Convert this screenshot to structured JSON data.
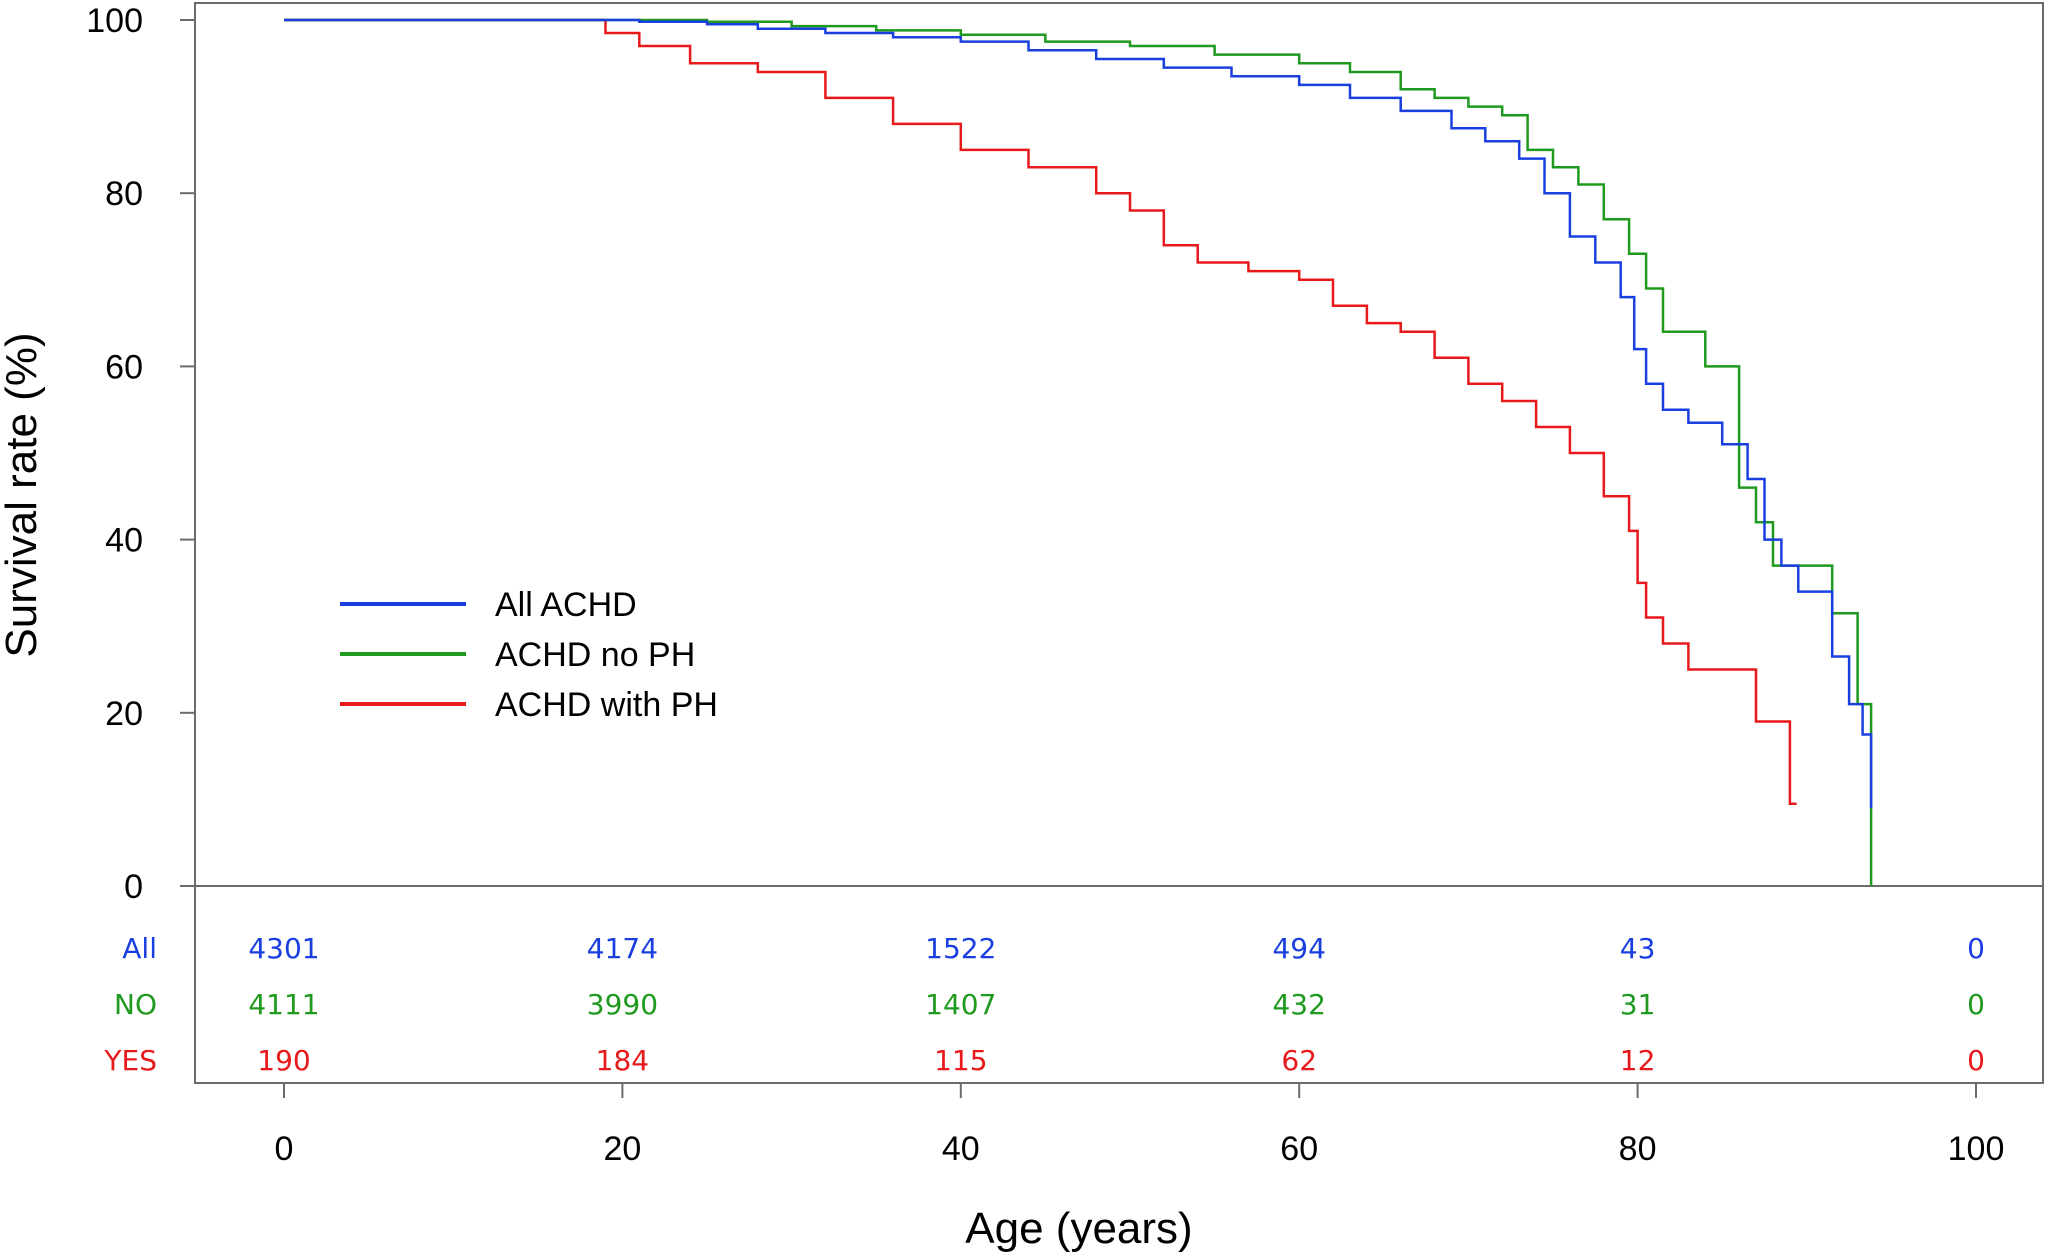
{
  "chart_data": {
    "type": "line",
    "subtype": "kaplan-meier step curve",
    "title": "",
    "xlabel": "Age (years)",
    "ylabel": "Survival rate (%)",
    "xlim": [
      0,
      100
    ],
    "ylim": [
      0,
      100
    ],
    "xticks": [
      0,
      20,
      40,
      60,
      80,
      100
    ],
    "yticks": [
      0,
      20,
      40,
      60,
      80,
      100
    ],
    "grid": false,
    "legend_position": "left-middle",
    "series": [
      {
        "name": "All ACHD",
        "color": "#1a3fe0",
        "x": [
          0,
          21,
          25,
          28,
          32,
          36,
          40,
          44,
          48,
          52,
          56,
          60,
          63,
          66,
          69,
          71,
          73,
          74.5,
          76,
          77.5,
          79,
          79.8,
          80.5,
          81.5,
          83,
          85,
          86.5,
          87.5,
          88.5,
          89.5,
          91.5,
          92.5,
          93.3,
          93.8
        ],
        "y": [
          100,
          99.8,
          99.5,
          99,
          98.5,
          98,
          97.5,
          96.5,
          95.5,
          94.5,
          93.5,
          92.5,
          91,
          89.5,
          87.5,
          86,
          84,
          80,
          75,
          72,
          68,
          62,
          58,
          55,
          53.5,
          51,
          47,
          40,
          37,
          34,
          26.5,
          21,
          17.5,
          9
        ]
      },
      {
        "name": "ACHD no PH",
        "color": "#1f9a1f",
        "x": [
          0,
          25,
          30,
          35,
          40,
          45,
          50,
          55,
          60,
          63,
          66,
          68,
          70,
          72,
          73.5,
          75,
          76.5,
          78,
          79.5,
          80.5,
          81.5,
          84,
          86,
          87,
          88,
          91.5,
          93,
          93.8
        ],
        "y": [
          100,
          99.8,
          99.3,
          98.8,
          98.3,
          97.5,
          97,
          96,
          95,
          94,
          92,
          91,
          90,
          89,
          85,
          83,
          81,
          77,
          73,
          69,
          64,
          60,
          46,
          42,
          37,
          31.5,
          21,
          0
        ]
      },
      {
        "name": "ACHD with PH",
        "color": "#e8191b",
        "x": [
          0,
          19,
          21,
          24,
          28,
          32,
          36,
          40,
          44,
          48,
          50,
          52,
          54,
          57,
          60,
          62,
          64,
          66,
          68,
          70,
          72,
          74,
          76,
          78,
          79.5,
          80,
          80.5,
          81.5,
          83,
          85,
          87,
          89,
          89.4
        ],
        "y": [
          100,
          98.5,
          97,
          95,
          94,
          91,
          88,
          85,
          83,
          80,
          78,
          74,
          72,
          71,
          70,
          67,
          65,
          64,
          61,
          58,
          56,
          53,
          50,
          45,
          41,
          35,
          31,
          28,
          25,
          25,
          19,
          9.5,
          9.5
        ]
      }
    ],
    "risk_table": {
      "times": [
        0,
        20,
        40,
        60,
        80,
        100
      ],
      "rows": [
        {
          "label": "All",
          "color": "#1a3fe0",
          "values": [
            "4301",
            "4174",
            "1522",
            "494",
            "43",
            "0"
          ]
        },
        {
          "label": "NO",
          "color": "#1f9a1f",
          "values": [
            "4111",
            "3990",
            "1407",
            "432",
            "31",
            "0"
          ]
        },
        {
          "label": "YES",
          "color": "#e8191b",
          "values": [
            "190",
            "184",
            "115",
            "62",
            "12",
            "0"
          ]
        }
      ]
    }
  }
}
